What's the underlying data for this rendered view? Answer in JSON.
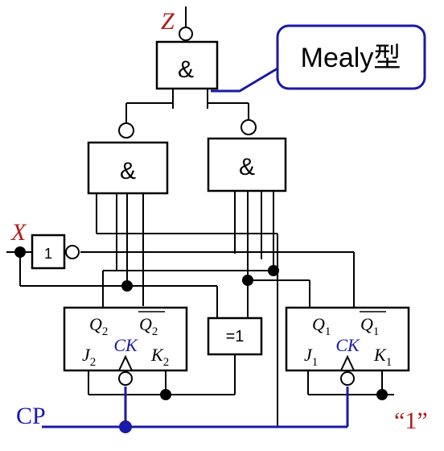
{
  "labels": {
    "output_Z": "Z",
    "input_X": "X",
    "clock_CP": "CP",
    "const_one": "“1”",
    "callout": "Mealy型"
  },
  "gates": {
    "and_top": "&",
    "and_left": "&",
    "and_right": "&",
    "not": "1",
    "xor": "=1"
  },
  "ff2": {
    "Q": "Q",
    "Q_sub": "2",
    "Qbar": "Q",
    "Qbar_sub": "2",
    "J": "J",
    "J_sub": "2",
    "CK": "CK",
    "K": "K",
    "K_sub": "2"
  },
  "ff1": {
    "Q": "Q",
    "Q_sub": "1",
    "Qbar": "Q",
    "Qbar_sub": "1",
    "J": "J",
    "J_sub": "1",
    "CK": "CK",
    "K": "K",
    "K_sub": "1"
  },
  "colors": {
    "red": "#b01c1c",
    "blue": "#1a1aa6",
    "black": "#000000"
  }
}
